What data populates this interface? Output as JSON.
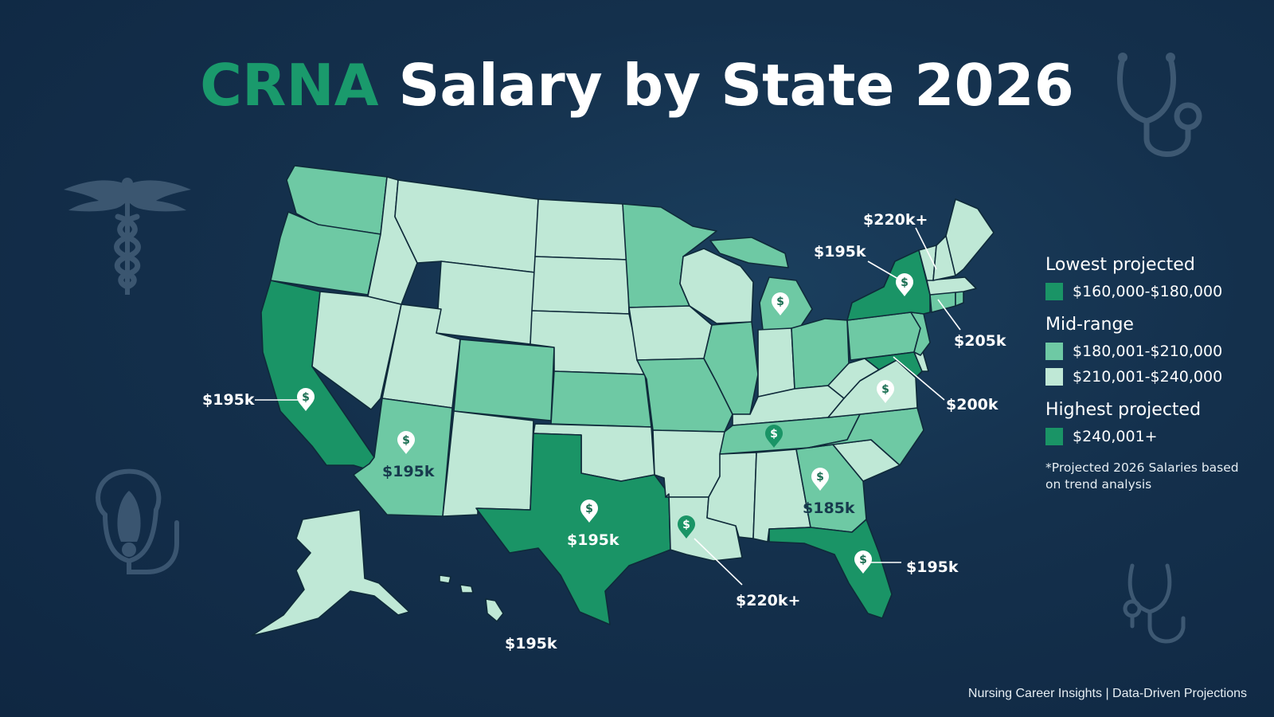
{
  "title": {
    "accent": "CRNA",
    "rest": "Salary by State 2026"
  },
  "colors": {
    "lowest": "#1a9466",
    "mid_high": "#6ec9a4",
    "mid_low": "#bfe8d6",
    "highest": "#1a9466",
    "border": "#0f2a3a"
  },
  "map_callouts": [
    {
      "id": "ca",
      "label": "$195k"
    },
    {
      "id": "az",
      "label": "$195k"
    },
    {
      "id": "tx",
      "label": "$195k"
    },
    {
      "id": "la",
      "label": "$220k+"
    },
    {
      "id": "ga",
      "label": "$185k"
    },
    {
      "id": "fl",
      "label": "$195k"
    },
    {
      "id": "va",
      "label": "$200k"
    },
    {
      "id": "nj",
      "label": "$205k"
    },
    {
      "id": "ny",
      "label": "$195k"
    },
    {
      "id": "ne",
      "label": "$220k+"
    },
    {
      "id": "hi",
      "label": "$195k"
    }
  ],
  "legend": {
    "groups": [
      {
        "title": "Lowest projected",
        "items": [
          {
            "label": "$160,000-$180,000",
            "color_key": "lowest"
          }
        ]
      },
      {
        "title": "Mid-range",
        "items": [
          {
            "label": "$180,001-$210,000",
            "color_key": "mid_high"
          },
          {
            "label": "$210,001-$240,000",
            "color_key": "mid_low"
          }
        ]
      },
      {
        "title": "Highest projected",
        "items": [
          {
            "label": "$240,001+",
            "color_key": "highest"
          }
        ]
      }
    ],
    "note": "*Projected 2026 Salaries based on trend analysis"
  },
  "footer": "Nursing Career Insights | Data-Driven Projections",
  "icons": [
    "caduceus-icon",
    "stethoscope-icon",
    "oxygen-mask-icon",
    "dollar-pin-icon"
  ]
}
